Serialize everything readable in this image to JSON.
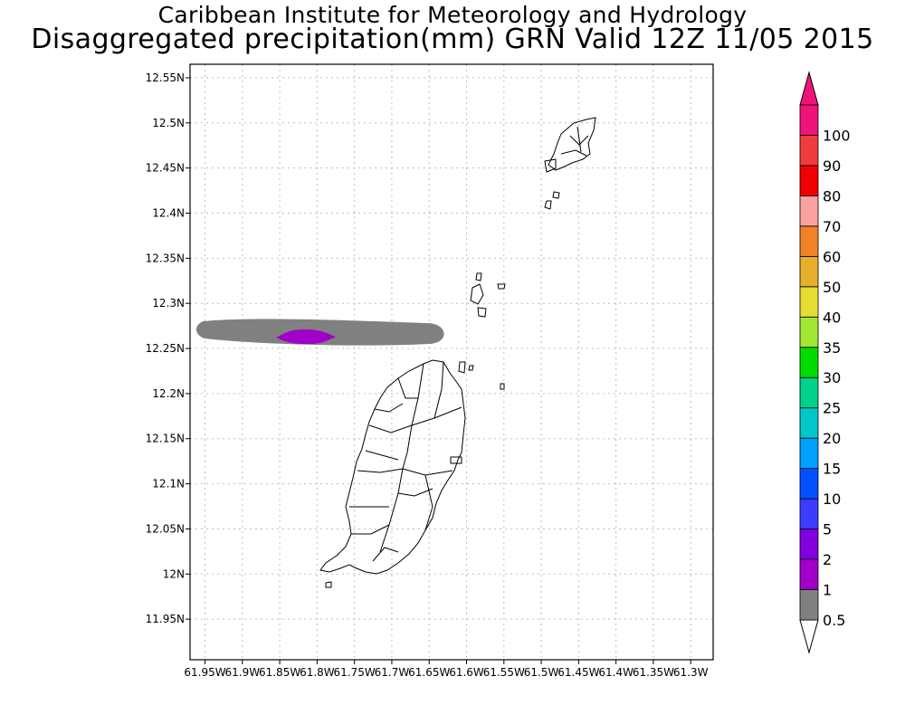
{
  "title_line1": "Caribbean Institute for Meteorology and Hydrology",
  "title_line2": "Disaggregated precipitation(mm) GRN Valid 12Z 11/05 2015",
  "map": {
    "lon_range": [
      -61.97,
      -61.27
    ],
    "lat_range": [
      11.905,
      12.565
    ],
    "lat_ticks": [
      {
        "value": 12.55,
        "label": "12.55N"
      },
      {
        "value": 12.5,
        "label": "12.5N"
      },
      {
        "value": 12.45,
        "label": "12.45N"
      },
      {
        "value": 12.4,
        "label": "12.4N"
      },
      {
        "value": 12.35,
        "label": "12.35N"
      },
      {
        "value": 12.3,
        "label": "12.3N"
      },
      {
        "value": 12.25,
        "label": "12.25N"
      },
      {
        "value": 12.2,
        "label": "12.2N"
      },
      {
        "value": 12.15,
        "label": "12.15N"
      },
      {
        "value": 12.1,
        "label": "12.1N"
      },
      {
        "value": 12.05,
        "label": "12.05N"
      },
      {
        "value": 12.0,
        "label": "12N"
      },
      {
        "value": 11.95,
        "label": "11.95N"
      }
    ],
    "lon_ticks": [
      {
        "value": -61.95,
        "label": "61.95W"
      },
      {
        "value": -61.9,
        "label": "61.9W"
      },
      {
        "value": -61.85,
        "label": "61.85W"
      },
      {
        "value": -61.8,
        "label": "61.8W"
      },
      {
        "value": -61.75,
        "label": "61.75W"
      },
      {
        "value": -61.7,
        "label": "61.7W"
      },
      {
        "value": -61.65,
        "label": "61.65W"
      },
      {
        "value": -61.6,
        "label": "61.6W"
      },
      {
        "value": -61.55,
        "label": "61.55W"
      },
      {
        "value": -61.5,
        "label": "61.5W"
      },
      {
        "value": -61.45,
        "label": "61.45W"
      },
      {
        "value": -61.4,
        "label": "61.4W"
      },
      {
        "value": -61.35,
        "label": "61.35W"
      },
      {
        "value": -61.3,
        "label": "61.3W"
      }
    ],
    "grid": true,
    "precip_areas": [
      {
        "level": "0.5-1 mm",
        "color": "#808080",
        "lon_range": [
          -61.96,
          -61.625
        ],
        "lat_range": [
          12.253,
          12.284
        ]
      },
      {
        "level": "1-2 mm",
        "color": "#a000c8",
        "lon_range": [
          -61.855,
          -61.775
        ],
        "lat_range": [
          12.255,
          12.271
        ]
      }
    ]
  },
  "colorbar": {
    "levels": [
      {
        "label": "0.5",
        "color": "#808080"
      },
      {
        "label": "1",
        "color": "#a000c8"
      },
      {
        "label": "2",
        "color": "#8200dc"
      },
      {
        "label": "5",
        "color": "#3c3cff"
      },
      {
        "label": "10",
        "color": "#0050ff"
      },
      {
        "label": "15",
        "color": "#00a0ff"
      },
      {
        "label": "20",
        "color": "#00c8c8"
      },
      {
        "label": "25",
        "color": "#00d28c"
      },
      {
        "label": "30",
        "color": "#00dc00"
      },
      {
        "label": "35",
        "color": "#a0e632"
      },
      {
        "label": "40",
        "color": "#e6dc32"
      },
      {
        "label": "50",
        "color": "#e6af2d"
      },
      {
        "label": "60",
        "color": "#f08228"
      },
      {
        "label": "70",
        "color": "#faa0a0"
      },
      {
        "label": "80",
        "color": "#f00000"
      },
      {
        "label": "90",
        "color": "#f03c3c"
      },
      {
        "label": "100",
        "color": "#f0147a"
      }
    ],
    "top_arrow_color": "#f0147a",
    "bottom_arrow_color": "#ffffff"
  }
}
